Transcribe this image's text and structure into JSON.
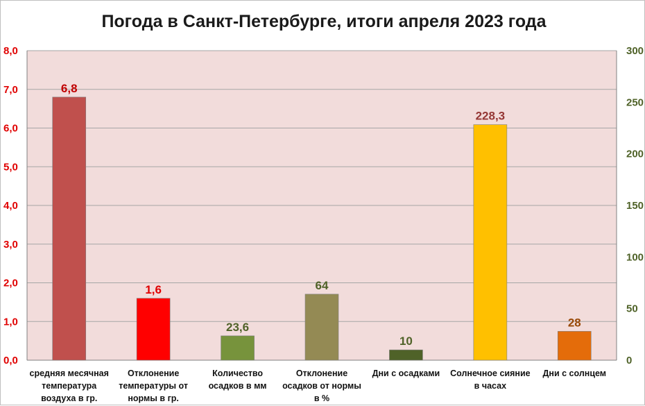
{
  "chart_data": {
    "type": "bar",
    "title": "Погода в Санкт-Петербурге, итоги апреля 2023 года",
    "grid": true,
    "legend": "none",
    "left_axis": {
      "ylim": [
        0,
        8
      ],
      "ticks": [
        "0,0",
        "1,0",
        "2,0",
        "3,0",
        "4,0",
        "5,0",
        "6,0",
        "7,0",
        "8,0"
      ],
      "color": "#e00000"
    },
    "right_axis": {
      "ylim": [
        0,
        300
      ],
      "ticks": [
        "0",
        "50",
        "100",
        "150",
        "200",
        "250",
        "300"
      ],
      "color": "#4f6228"
    },
    "plot_background": "#f2dcdb",
    "categories": [
      {
        "lines": [
          "средняя месячная",
          "температура",
          "воздуха в гр."
        ]
      },
      {
        "lines": [
          "Отклонение",
          "температуры от",
          "нормы в гр."
        ]
      },
      {
        "lines": [
          "Количество",
          "осадков в мм"
        ]
      },
      {
        "lines": [
          "Отклонение",
          "осадков от нормы",
          "в %"
        ]
      },
      {
        "lines": [
          "Дни с осадками"
        ]
      },
      {
        "lines": [
          "Солнечное сияние",
          "в часах"
        ]
      },
      {
        "lines": [
          "Дни с солнцем"
        ]
      }
    ],
    "bars": [
      {
        "value": 6.8,
        "label": "6,8",
        "axis": "left",
        "color": "#c0504d",
        "label_color": "#c00000"
      },
      {
        "value": 1.6,
        "label": "1,6",
        "axis": "left",
        "color": "#ff0000",
        "label_color": "#e00000"
      },
      {
        "value": 23.6,
        "label": "23,6",
        "axis": "right",
        "color": "#77933c",
        "label_color": "#4f6228"
      },
      {
        "value": 64,
        "label": "64",
        "axis": "right",
        "color": "#948a54",
        "label_color": "#4f6228"
      },
      {
        "value": 10,
        "label": "10",
        "axis": "right",
        "color": "#4f6228",
        "label_color": "#4f6228"
      },
      {
        "value": 228.3,
        "label": "228,3",
        "axis": "right",
        "color": "#ffc000",
        "label_color": "#953735"
      },
      {
        "value": 28,
        "label": "28",
        "axis": "right",
        "color": "#e46c0a",
        "label_color": "#984806"
      }
    ]
  }
}
